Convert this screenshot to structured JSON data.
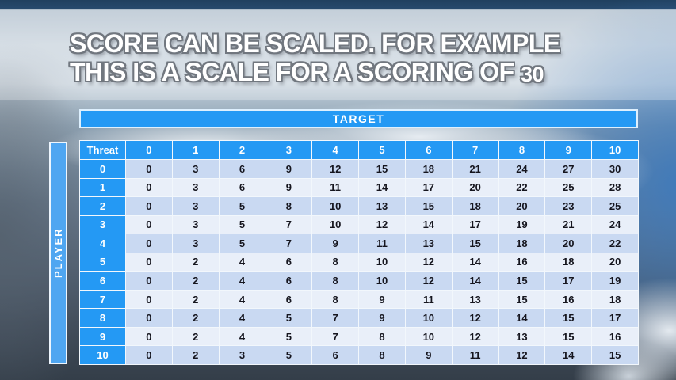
{
  "title": {
    "line1": "SCORE CAN BE SCALED. FOR EXAMPLE",
    "line2": "THIS IS A SCALE FOR A SCORING OF",
    "line2_number": "30"
  },
  "table": {
    "target_label": "TARGET",
    "player_label": "PLAYER",
    "threat_label": "Threat",
    "column_headers": [
      "0",
      "1",
      "2",
      "3",
      "4",
      "5",
      "6",
      "7",
      "8",
      "9",
      "10"
    ],
    "rows": [
      {
        "threat": "0",
        "values": [
          0,
          3,
          6,
          9,
          12,
          15,
          18,
          21,
          24,
          27,
          30
        ]
      },
      {
        "threat": "1",
        "values": [
          0,
          3,
          6,
          9,
          11,
          14,
          17,
          20,
          22,
          25,
          28
        ]
      },
      {
        "threat": "2",
        "values": [
          0,
          3,
          5,
          8,
          10,
          13,
          15,
          18,
          20,
          23,
          25
        ]
      },
      {
        "threat": "3",
        "values": [
          0,
          3,
          5,
          7,
          10,
          12,
          14,
          17,
          19,
          21,
          24
        ]
      },
      {
        "threat": "4",
        "values": [
          0,
          3,
          5,
          7,
          9,
          11,
          13,
          15,
          18,
          20,
          22
        ]
      },
      {
        "threat": "5",
        "values": [
          0,
          2,
          4,
          6,
          8,
          10,
          12,
          14,
          16,
          18,
          20
        ]
      },
      {
        "threat": "6",
        "values": [
          0,
          2,
          4,
          6,
          8,
          10,
          12,
          14,
          15,
          17,
          19
        ]
      },
      {
        "threat": "7",
        "values": [
          0,
          2,
          4,
          6,
          8,
          9,
          11,
          13,
          15,
          16,
          18
        ]
      },
      {
        "threat": "8",
        "values": [
          0,
          2,
          4,
          5,
          7,
          9,
          10,
          12,
          14,
          15,
          17
        ]
      },
      {
        "threat": "9",
        "values": [
          0,
          2,
          4,
          5,
          7,
          8,
          10,
          12,
          13,
          15,
          16
        ]
      },
      {
        "threat": "10",
        "values": [
          0,
          2,
          3,
          5,
          6,
          8,
          9,
          11,
          12,
          14,
          15
        ]
      }
    ]
  },
  "colors": {
    "header_blue": "#2499f4",
    "player_blue": "#4fa6f1",
    "row_even": "#c9d9f2",
    "row_odd": "#e9eff9",
    "grid_line": "#f2f7fc",
    "cell_text": "#15151e"
  }
}
